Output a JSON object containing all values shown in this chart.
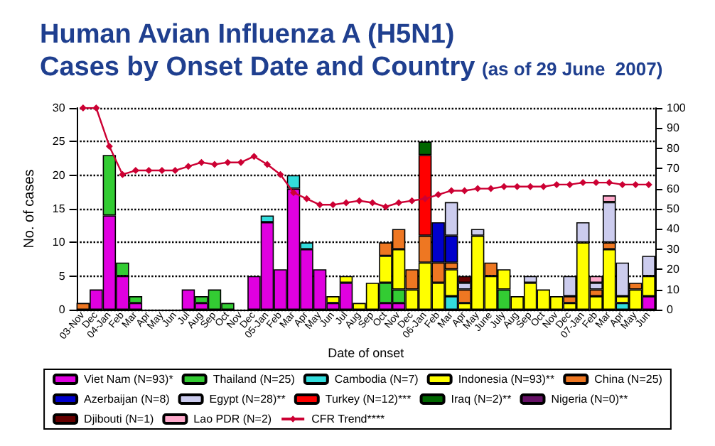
{
  "chart_data": {
    "type": "bar",
    "title": "Human Avian Influenza A (H5N1) Cases by Onset Date and Country",
    "subtitle": "(as of 29 June  2007)",
    "xlabel": "Date of onset",
    "ylabel": "No. of cases",
    "stacked": true,
    "grid": "y",
    "legend": "bottom",
    "marker": "diamond",
    "line_style": "solid",
    "categories": [
      "03-Nov",
      "Dec",
      "04-Jan",
      "Feb",
      "Mar",
      "Apr",
      "May",
      "Jun",
      "Jul",
      "Aug",
      "Sep",
      "Oct",
      "Nov",
      "Dec",
      "05-Jan",
      "Feb",
      "Mar",
      "Apr",
      "May",
      "Jun",
      "Jul",
      "Aug",
      "Sep",
      "Oct",
      "Nov",
      "Dec",
      "06-Jan",
      "Feb",
      "Mar",
      "Apr",
      "May",
      "June",
      "July",
      "Aug",
      "Sep",
      "Oct",
      "Nov",
      "Dec",
      "07-Jan",
      "Feb",
      "Mar",
      "Apr",
      "May",
      "Jun"
    ],
    "ylim": [
      0,
      30
    ],
    "yticks": [
      0,
      5,
      10,
      15,
      20,
      25,
      30
    ],
    "y2lim": [
      0,
      100
    ],
    "y2ticks": [
      0,
      10,
      20,
      30,
      40,
      50,
      60,
      70,
      80,
      90,
      100
    ],
    "series": [
      {
        "name": "Viet Nam (N=93)*",
        "color": "#e000e0",
        "values": [
          0,
          3,
          14,
          5,
          1,
          0,
          0,
          0,
          3,
          1,
          0,
          0,
          0,
          5,
          13,
          6,
          18,
          9,
          6,
          1,
          4,
          0,
          0,
          1,
          1,
          0,
          0,
          0,
          0,
          0,
          0,
          0,
          0,
          0,
          0,
          0,
          0,
          0,
          0,
          0,
          0,
          0,
          0,
          2
        ]
      },
      {
        "name": "Thailand (N=25)",
        "color": "#33cc33",
        "values": [
          0,
          0,
          9,
          2,
          1,
          0,
          0,
          0,
          0,
          1,
          3,
          1,
          0,
          0,
          0,
          0,
          0,
          0,
          0,
          0,
          0,
          0,
          0,
          3,
          2,
          0,
          0,
          0,
          0,
          0,
          0,
          0,
          3,
          0,
          0,
          0,
          0,
          0,
          0,
          0,
          0,
          0,
          0,
          0
        ]
      },
      {
        "name": "Cambodia (N=7)",
        "color": "#33dddd",
        "values": [
          0,
          0,
          0,
          0,
          0,
          0,
          0,
          0,
          0,
          0,
          0,
          0,
          0,
          0,
          1,
          0,
          2,
          1,
          0,
          0,
          0,
          0,
          0,
          0,
          0,
          0,
          0,
          0,
          2,
          0,
          0,
          0,
          0,
          0,
          0,
          0,
          0,
          0,
          0,
          0,
          0,
          1,
          0,
          0
        ]
      },
      {
        "name": "Indonesia (N=93)**",
        "color": "#ffff00",
        "values": [
          0,
          0,
          0,
          0,
          0,
          0,
          0,
          0,
          0,
          0,
          0,
          0,
          0,
          0,
          0,
          0,
          0,
          0,
          0,
          1,
          1,
          1,
          4,
          4,
          6,
          3,
          7,
          4,
          4,
          1,
          11,
          5,
          3,
          2,
          4,
          3,
          2,
          1,
          10,
          2,
          9,
          1,
          3,
          3
        ]
      },
      {
        "name": "China (N=25)",
        "color": "#ee7722",
        "values": [
          1,
          0,
          0,
          0,
          0,
          0,
          0,
          0,
          0,
          0,
          0,
          0,
          0,
          0,
          0,
          0,
          0,
          0,
          0,
          0,
          0,
          0,
          0,
          2,
          3,
          3,
          4,
          3,
          1,
          2,
          0,
          2,
          0,
          0,
          0,
          0,
          0,
          1,
          0,
          1,
          1,
          0,
          1,
          0
        ]
      },
      {
        "name": "Azerbaijan (N=8)",
        "color": "#0000cc",
        "values": [
          0,
          0,
          0,
          0,
          0,
          0,
          0,
          0,
          0,
          0,
          0,
          0,
          0,
          0,
          0,
          0,
          0,
          0,
          0,
          0,
          0,
          0,
          0,
          0,
          0,
          0,
          0,
          6,
          4,
          0,
          0,
          0,
          0,
          0,
          0,
          0,
          0,
          0,
          0,
          0,
          0,
          0,
          0,
          0
        ]
      },
      {
        "name": "Egypt (N=28)**",
        "color": "#ccccee",
        "values": [
          0,
          0,
          0,
          0,
          0,
          0,
          0,
          0,
          0,
          0,
          0,
          0,
          0,
          0,
          0,
          0,
          0,
          0,
          0,
          0,
          0,
          0,
          0,
          0,
          0,
          0,
          0,
          0,
          5,
          1,
          1,
          0,
          0,
          0,
          1,
          0,
          0,
          3,
          3,
          1,
          6,
          5,
          0,
          3
        ]
      },
      {
        "name": "Turkey (N=12)***",
        "color": "#ff0000",
        "values": [
          0,
          0,
          0,
          0,
          0,
          0,
          0,
          0,
          0,
          0,
          0,
          0,
          0,
          0,
          0,
          0,
          0,
          0,
          0,
          0,
          0,
          0,
          0,
          0,
          0,
          0,
          12,
          0,
          0,
          0,
          0,
          0,
          0,
          0,
          0,
          0,
          0,
          0,
          0,
          0,
          0,
          0,
          0,
          0
        ]
      },
      {
        "name": "Iraq (N=2)**",
        "color": "#006600",
        "values": [
          0,
          0,
          0,
          0,
          0,
          0,
          0,
          0,
          0,
          0,
          0,
          0,
          0,
          0,
          0,
          0,
          0,
          0,
          0,
          0,
          0,
          0,
          0,
          0,
          0,
          0,
          2,
          0,
          0,
          0,
          0,
          0,
          0,
          0,
          0,
          0,
          0,
          0,
          0,
          0,
          0,
          0,
          0,
          0
        ]
      },
      {
        "name": "Nigeria (N=0)**",
        "color": "#661166",
        "values": [
          0,
          0,
          0,
          0,
          0,
          0,
          0,
          0,
          0,
          0,
          0,
          0,
          0,
          0,
          0,
          0,
          0,
          0,
          0,
          0,
          0,
          0,
          0,
          0,
          0,
          0,
          0,
          0,
          0,
          0,
          0,
          0,
          0,
          0,
          0,
          0,
          0,
          0,
          0,
          0,
          0,
          0,
          0,
          0
        ]
      },
      {
        "name": "Djibouti (N=1)",
        "color": "#660000",
        "values": [
          0,
          0,
          0,
          0,
          0,
          0,
          0,
          0,
          0,
          0,
          0,
          0,
          0,
          0,
          0,
          0,
          0,
          0,
          0,
          0,
          0,
          0,
          0,
          0,
          0,
          0,
          0,
          0,
          0,
          1,
          0,
          0,
          0,
          0,
          0,
          0,
          0,
          0,
          0,
          0,
          0,
          0,
          0,
          0
        ]
      },
      {
        "name": "Lao PDR (N=2)",
        "color": "#ffaacc",
        "values": [
          0,
          0,
          0,
          0,
          0,
          0,
          0,
          0,
          0,
          0,
          0,
          0,
          0,
          0,
          0,
          0,
          0,
          0,
          0,
          0,
          0,
          0,
          0,
          0,
          0,
          0,
          0,
          0,
          0,
          0,
          0,
          0,
          0,
          0,
          0,
          0,
          0,
          0,
          0,
          1,
          1,
          0,
          0,
          0
        ]
      },
      {
        "name": "CFR Trend****",
        "type": "line",
        "axis": "y2",
        "color": "#cc0033",
        "values": [
          100,
          100,
          81,
          67,
          69,
          69,
          69,
          69,
          71,
          73,
          72,
          73,
          73,
          76,
          72,
          67,
          58,
          55,
          52,
          52,
          53,
          54,
          53,
          51,
          53,
          54,
          55,
          57,
          59,
          59,
          60,
          60,
          61,
          61,
          61,
          61,
          62,
          62,
          63,
          63,
          63,
          62,
          62,
          62
        ]
      }
    ]
  }
}
